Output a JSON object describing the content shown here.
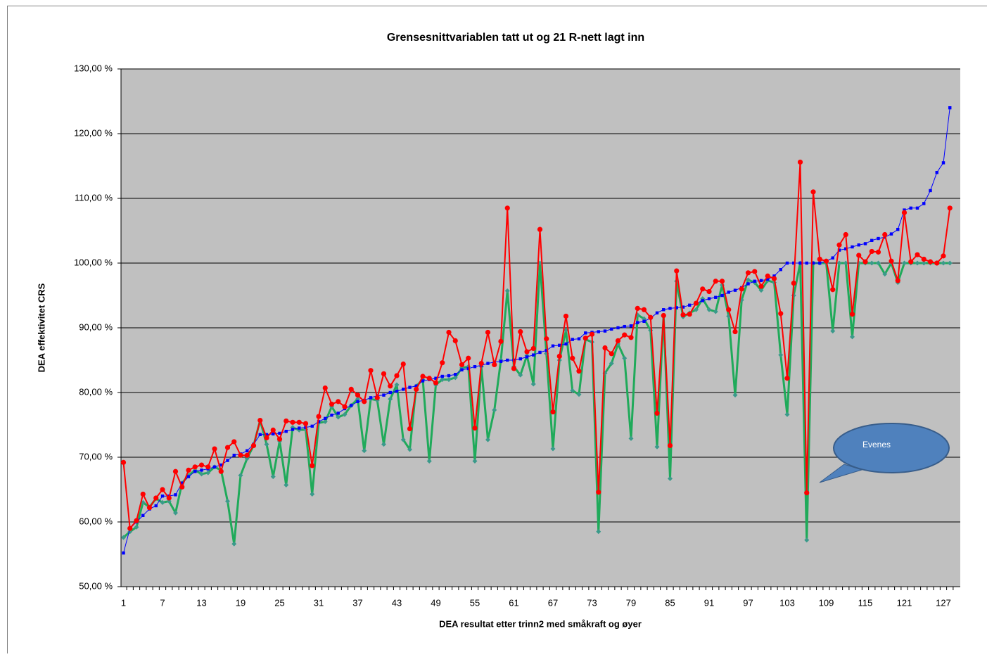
{
  "chart_data": {
    "type": "line",
    "title": "Grensesnittvariablen tatt ut og 21 R-nett lagt inn",
    "xlabel": "DEA resultat etter trinn2 med småkraft og øyer",
    "ylabel": "DEA effektivitet CRS",
    "annotation": "Evenes",
    "categories": [
      1,
      null,
      null,
      null,
      null,
      null,
      7,
      null,
      null,
      null,
      null,
      null,
      13,
      null,
      null,
      null,
      null,
      null,
      19,
      null,
      null,
      null,
      null,
      null,
      25,
      null,
      null,
      null,
      null,
      null,
      31,
      null,
      null,
      null,
      null,
      null,
      37,
      null,
      null,
      null,
      null,
      null,
      43,
      null,
      null,
      null,
      null,
      null,
      49,
      null,
      null,
      null,
      null,
      null,
      55,
      null,
      null,
      null,
      null,
      null,
      61,
      null,
      null,
      null,
      null,
      null,
      67,
      null,
      null,
      null,
      null,
      null,
      73,
      null,
      null,
      null,
      null,
      null,
      79,
      null,
      null,
      null,
      null,
      null,
      85,
      null,
      null,
      null,
      null,
      null,
      91,
      null,
      null,
      null,
      null,
      null,
      97,
      null,
      null,
      null,
      null,
      null,
      103,
      null,
      null,
      null,
      null,
      null,
      109,
      null,
      null,
      null,
      null,
      null,
      115,
      null,
      null,
      null,
      null,
      null,
      121,
      null,
      null,
      null,
      null,
      null,
      127,
      null
    ],
    "ylim": [
      50,
      130
    ],
    "yticks": [
      {
        "value": 50,
        "label": "50,00 %"
      },
      {
        "value": 60,
        "label": "60,00 %"
      },
      {
        "value": 70,
        "label": "70,00 %"
      },
      {
        "value": 80,
        "label": "80,00 %"
      },
      {
        "value": 90,
        "label": "90,00 %"
      },
      {
        "value": 100,
        "label": "100,00 %"
      },
      {
        "value": 110,
        "label": "110,00 %"
      },
      {
        "value": 120,
        "label": "120,00 %"
      },
      {
        "value": 130,
        "label": "130,00 %"
      }
    ],
    "grid": true,
    "series": [
      {
        "color": "#1faa5a",
        "marker_color": "#3a9a8a",
        "marker": "diamond",
        "values": [
          57.6,
          58.5,
          59.2,
          63,
          62.3,
          63.6,
          63,
          63.2,
          61.4,
          66,
          67.2,
          68,
          67.4,
          67.6,
          68.5,
          68,
          63.2,
          56.6,
          67.2,
          69.8,
          71.8,
          75.7,
          72,
          67,
          72.5,
          65.7,
          74.6,
          74.2,
          74.3,
          64.3,
          75.3,
          75.5,
          77.8,
          76.2,
          76.6,
          78,
          79,
          71,
          79,
          78.8,
          72,
          79,
          81.2,
          72.7,
          71.2,
          81,
          82,
          69.4,
          81.2,
          82,
          82,
          82.3,
          83.8,
          84,
          69.4,
          84,
          72.7,
          77.3,
          85,
          95.7,
          84,
          82.7,
          85.7,
          81.3,
          100,
          86,
          71.3,
          85,
          89.6,
          80.3,
          79.7,
          88.2,
          87.8,
          58.5,
          83,
          84.5,
          87.5,
          85.3,
          72.9,
          92,
          91.4,
          89.6,
          71.6,
          91.9,
          66.7,
          97.2,
          91.7,
          92.3,
          92.8,
          94.5,
          92.8,
          92.5,
          96.6,
          91.8,
          79.6,
          94.3,
          97.4,
          97,
          95.8,
          97.3,
          97,
          85.8,
          76.6,
          95,
          100,
          57.2,
          100,
          100,
          100,
          89.5,
          100,
          100,
          88.6,
          100,
          100,
          100,
          100,
          98.3,
          100,
          97,
          100,
          100,
          100,
          100,
          100,
          100,
          100,
          100
        ]
      },
      {
        "color": "#0000ff",
        "marker_color": "#0000ff",
        "marker": "square",
        "values": [
          55.2,
          59,
          60,
          61,
          62,
          62.5,
          64,
          64,
          64.2,
          66,
          67,
          67.8,
          68,
          68.2,
          68.5,
          68.8,
          69.5,
          70.3,
          70.5,
          71,
          72,
          73.5,
          73.5,
          73.6,
          73.7,
          74,
          74.3,
          74.5,
          74.6,
          74.8,
          75.5,
          76,
          76.5,
          76.8,
          77.5,
          78,
          78.6,
          78.8,
          79.2,
          79.5,
          79.6,
          80,
          80.2,
          80.5,
          80.8,
          81,
          81.8,
          82,
          82.2,
          82.5,
          82.6,
          82.8,
          83.5,
          83.7,
          84,
          84.2,
          84.5,
          84.7,
          84.8,
          85,
          85,
          85.2,
          85.5,
          85.8,
          86.2,
          86.5,
          87.2,
          87.3,
          87.5,
          88.2,
          88.3,
          89.2,
          89.3,
          89.4,
          89.5,
          89.8,
          90,
          90.2,
          90.3,
          90.8,
          91,
          91.5,
          92.3,
          92.8,
          93,
          93.1,
          93.2,
          93.5,
          93.8,
          94.2,
          94.5,
          94.7,
          95,
          95.5,
          95.8,
          96.2,
          96.8,
          97.2,
          97.3,
          97.5,
          98,
          99,
          100,
          100,
          100,
          100,
          100,
          100,
          100.3,
          100.8,
          102,
          102.2,
          102.5,
          102.8,
          103,
          103.5,
          103.8,
          104,
          104.5,
          105.2,
          108.2,
          108.5,
          108.5,
          109.2,
          111.2,
          114,
          115.5,
          124
        ]
      },
      {
        "color": "#ff0000",
        "marker_color": "#ff0000",
        "marker": "circle",
        "values": [
          69.2,
          59,
          60.2,
          64.3,
          62.2,
          63.7,
          65,
          63.7,
          67.8,
          65.4,
          68,
          68.5,
          68.8,
          68.5,
          71.3,
          67.8,
          71.5,
          72.4,
          70.3,
          70.3,
          71.8,
          75.7,
          73,
          74.2,
          72.8,
          75.6,
          75.4,
          75.4,
          75.2,
          68.7,
          76.3,
          80.7,
          78.2,
          78.6,
          77.8,
          80.5,
          79.6,
          78.6,
          83.4,
          79.2,
          82.9,
          81,
          82.6,
          84.4,
          74.4,
          80.5,
          82.5,
          82.2,
          81.5,
          84.6,
          89.3,
          88,
          84.3,
          85.3,
          74.5,
          84.5,
          89.3,
          84.3,
          87.9,
          108.5,
          83.7,
          89.4,
          86.3,
          86.8,
          105.2,
          88.3,
          77,
          85.6,
          91.8,
          85.3,
          83.3,
          88.4,
          89,
          64.6,
          86.9,
          86,
          88,
          88.9,
          88.5,
          93,
          92.8,
          91.6,
          76.8,
          91.9,
          71.8,
          98.8,
          92,
          92.1,
          93.8,
          96,
          95.6,
          97.2,
          97.2,
          92.8,
          89.4,
          96,
          98.5,
          98.7,
          96.4,
          98,
          97.6,
          92.2,
          82.2,
          96.9,
          115.6,
          64.5,
          111,
          100.6,
          100.3,
          95.9,
          102.8,
          104.4,
          92.1,
          101.2,
          100.2,
          101.8,
          101.7,
          104.4,
          100.3,
          97.3,
          107.8,
          100.2,
          101.3,
          100.6,
          100.2,
          100,
          101.1,
          108.5
        ]
      }
    ]
  }
}
